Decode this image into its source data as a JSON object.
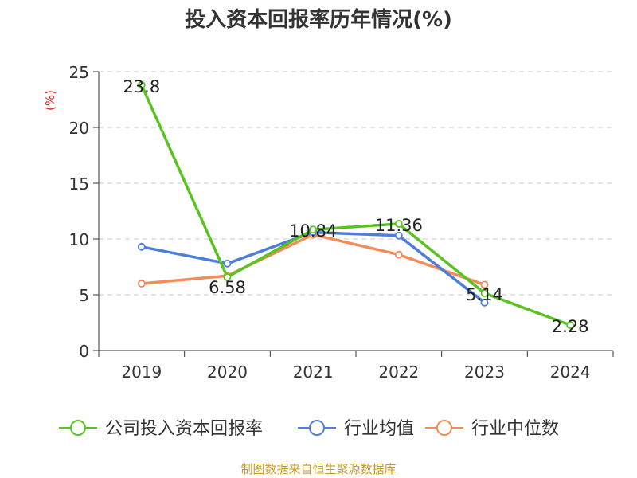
{
  "chart_data": {
    "type": "line",
    "title": "投入资本回报率历年情况(%)",
    "ylabel": "(%)",
    "xlabel": "",
    "ylim": [
      0,
      25
    ],
    "yticks": [
      0,
      5,
      10,
      15,
      20,
      25
    ],
    "grid": true,
    "legend_position": "bottom",
    "categories": [
      "2019",
      "2020",
      "2021",
      "2022",
      "2023",
      "2024"
    ],
    "series": [
      {
        "name": "公司投入资本回报率",
        "color": "#5ac322",
        "values": [
          23.8,
          6.58,
          10.84,
          11.36,
          5.14,
          2.28
        ],
        "labels": [
          "23.8",
          "6.58",
          "10.84",
          "11.36",
          "5.14",
          "2.28"
        ]
      },
      {
        "name": "行业均值",
        "color": "#4e7fd8",
        "values": [
          9.3,
          7.8,
          10.6,
          10.3,
          4.3,
          null
        ]
      },
      {
        "name": "行业中位数",
        "color": "#f28c5a",
        "values": [
          6.0,
          6.7,
          10.4,
          8.6,
          5.9,
          null
        ]
      }
    ]
  },
  "source": "制图数据来自恒生聚源数据库"
}
